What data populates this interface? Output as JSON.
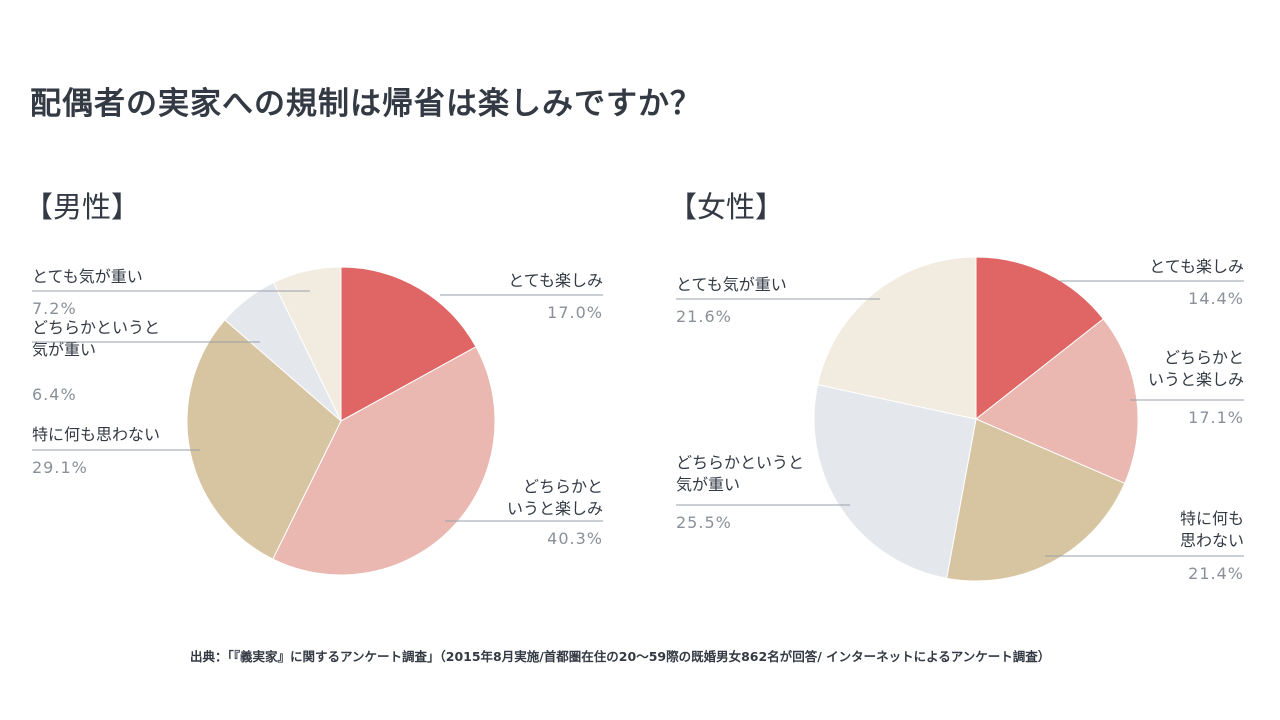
{
  "title": "配偶者の実家への規制は帰省は楽しみですか？",
  "source": "出典：「『義実家』に関するアンケート調査」（2015年8月実施/首都圏在住の20〜59際の既婚男女862名が回答/ インターネットによるアンケート調査）",
  "colors": {
    "text_dark": "#333a44",
    "text_value": "#8a9099",
    "leader_line": "#9aa0a8"
  },
  "chart_data": [
    {
      "type": "pie",
      "title": "【男性】",
      "slices": [
        {
          "label": [
            "とても楽しみ"
          ],
          "value": 17.0,
          "value_label": "17.0%",
          "color": "#e06666"
        },
        {
          "label": [
            "どちらかと",
            "いうと楽しみ"
          ],
          "value": 40.3,
          "value_label": "40.3%",
          "color": "#eab7b1"
        },
        {
          "label": [
            "特に何も思わない"
          ],
          "value": 29.1,
          "value_label": "29.1%",
          "color": "#d7c4a0"
        },
        {
          "label": [
            "どちらかというと",
            "気が重い"
          ],
          "value": 6.4,
          "value_label": "6.4%",
          "color": "#e4e7ec"
        },
        {
          "label": [
            "とても気が重い"
          ],
          "value": 7.2,
          "value_label": "7.2%",
          "color": "#f2ebdf"
        }
      ]
    },
    {
      "type": "pie",
      "title": "【女性】",
      "slices": [
        {
          "label": [
            "とても楽しみ"
          ],
          "value": 14.4,
          "value_label": "14.4%",
          "color": "#e06666"
        },
        {
          "label": [
            "どちらかと",
            "いうと楽しみ"
          ],
          "value": 17.1,
          "value_label": "17.1%",
          "color": "#eab7b1"
        },
        {
          "label": [
            "特に何も",
            "思わない"
          ],
          "value": 21.4,
          "value_label": "21.4%",
          "color": "#d7c4a0"
        },
        {
          "label": [
            "どちらかというと",
            "気が重い"
          ],
          "value": 25.5,
          "value_label": "25.5%",
          "color": "#e4e7ec"
        },
        {
          "label": [
            "とても気が重い"
          ],
          "value": 21.6,
          "value_label": "21.6%",
          "color": "#f2ebdf"
        }
      ]
    }
  ]
}
